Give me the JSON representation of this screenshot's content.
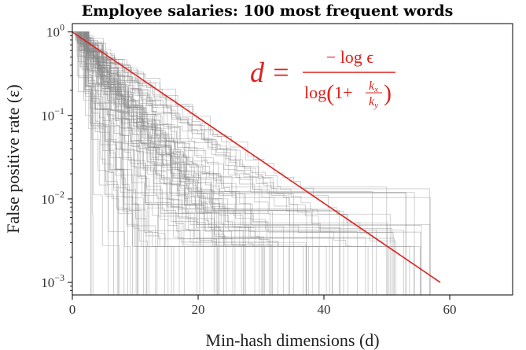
{
  "chart_data": {
    "type": "line",
    "title": "Employee salaries: 100 most frequent words",
    "xlabel": "Min-hash dimensions (d)",
    "ylabel": "False positive rate (ε)",
    "xlim": [
      0,
      70
    ],
    "ylim_log10": [
      -3.15,
      0.1
    ],
    "y_scale": "log",
    "x_ticks": [
      {
        "value": 0,
        "label": "0"
      },
      {
        "value": 20,
        "label": "20"
      },
      {
        "value": 40,
        "label": "40"
      },
      {
        "value": 60,
        "label": "60"
      }
    ],
    "y_ticks": [
      {
        "exp": 0,
        "base": "10",
        "sup": "0"
      },
      {
        "exp": -1,
        "base": "10",
        "sup": "−1"
      },
      {
        "exp": -2,
        "base": "10",
        "sup": "−2"
      },
      {
        "exp": -3,
        "base": "10",
        "sup": "−3"
      }
    ],
    "grid": false,
    "theory_line": {
      "x": [
        0,
        58.5
      ],
      "y": [
        1,
        0.001
      ],
      "color": "#e0201c"
    },
    "empirical_curves": {
      "count": 100,
      "color": "#888888",
      "x_end_range": [
        2,
        57
      ],
      "floor": 0.0027
    },
    "formula": {
      "lhs": "d =",
      "numerator": "− log ϵ",
      "denominator": "log(1+kx/ky)",
      "frac_num": "k",
      "frac_num_sub": "x",
      "frac_den": "k",
      "frac_den_sub": "y"
    }
  }
}
